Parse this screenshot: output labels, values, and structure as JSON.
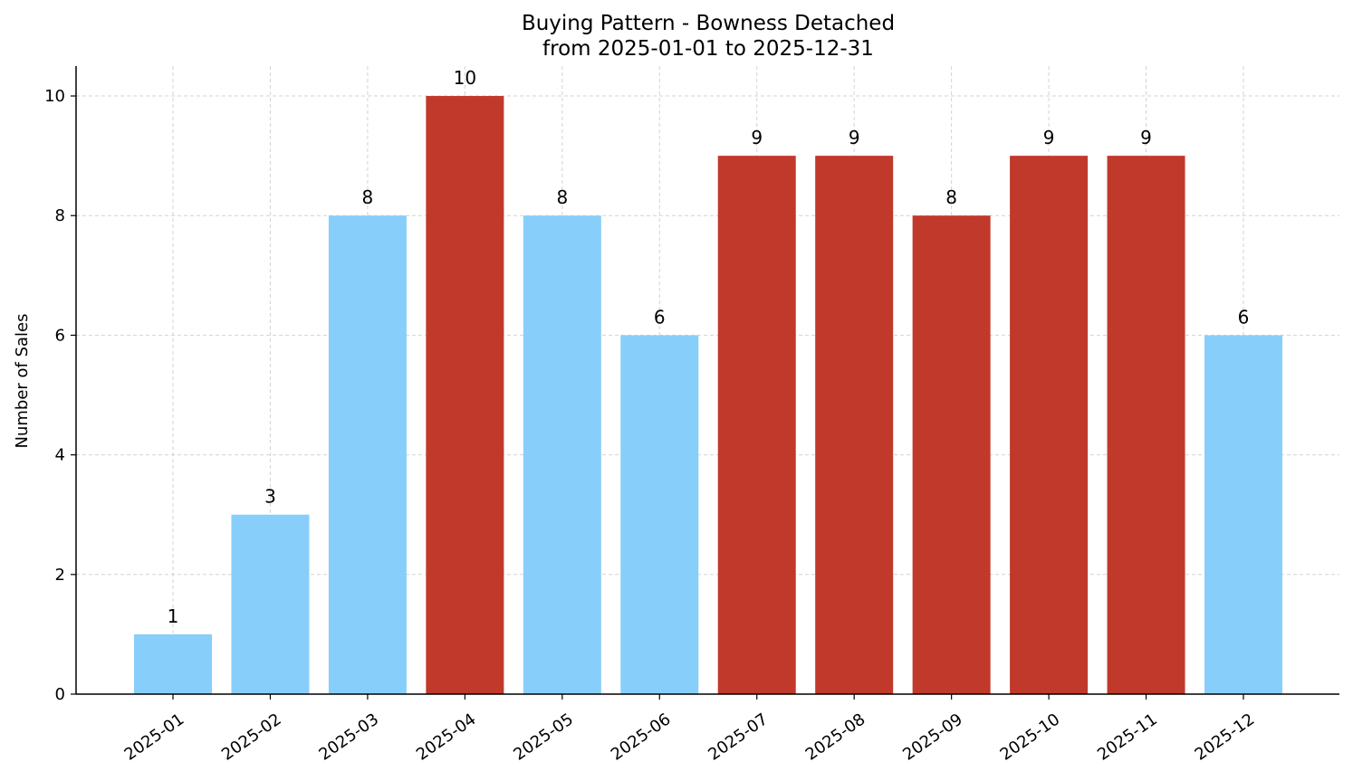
{
  "chart_data": {
    "type": "bar",
    "title": "Buying Pattern - Bowness Detached",
    "subtitle": "from 2025-01-01 to 2025-12-31",
    "xlabel": "",
    "ylabel": "Number of Sales",
    "ylim": [
      0,
      10.5
    ],
    "yticks": [
      0,
      2,
      4,
      6,
      8,
      10
    ],
    "grid": true,
    "categories": [
      "2025-01",
      "2025-02",
      "2025-03",
      "2025-04",
      "2025-05",
      "2025-06",
      "2025-07",
      "2025-08",
      "2025-09",
      "2025-10",
      "2025-11",
      "2025-12"
    ],
    "values": [
      1,
      3,
      8,
      10,
      8,
      6,
      9,
      9,
      8,
      9,
      9,
      6
    ],
    "bar_colors": [
      "#87cefa",
      "#87cefa",
      "#87cefa",
      "#c0392b",
      "#87cefa",
      "#87cefa",
      "#c0392b",
      "#c0392b",
      "#c0392b",
      "#c0392b",
      "#c0392b",
      "#87cefa"
    ]
  }
}
